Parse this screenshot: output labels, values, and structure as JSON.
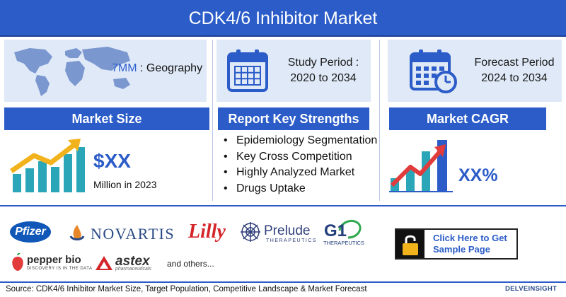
{
  "header": {
    "title": "CDK4/6 Inhibitor Market"
  },
  "geography": {
    "highlight": "7MM",
    "rest": " : Geography"
  },
  "study": {
    "label": "Study Period :",
    "range": "2020 to 2034"
  },
  "forecast": {
    "label": "Forecast Period",
    "range": "2024 to 2034"
  },
  "market_size": {
    "heading": "Market Size",
    "value": "$XX",
    "sub": "Million in 2023"
  },
  "strengths": {
    "heading": "Report Key Strengths",
    "items": [
      "Epidemiology Segmentation",
      "Key Cross Competition",
      "Highly Analyzed Market",
      "Drugs Uptake"
    ]
  },
  "cagr": {
    "heading": "Market CAGR",
    "value": "XX%"
  },
  "companies": {
    "pfizer": "Pfizer",
    "novartis": "NOVARTIS",
    "lilly": "Lilly",
    "prelude": "Prelude",
    "prelude_sub": "THERAPEUTICS",
    "g1": "G1",
    "g1_sub": "THERAPEUTICS",
    "pepper": "pepper bio",
    "pepper_sub": "DISCOVERY IS IN THE DATA",
    "astex": "astex",
    "astex_sub": "pharmaceuticals",
    "others": "and others..."
  },
  "cta": {
    "line1": "Click Here to Get",
    "line2": "Sample Page"
  },
  "footer": {
    "source": "Source: CDK4/6 Inhibitor Market Size, Target Population, Competitive Landscape & Market Forecast",
    "brand": "DELVEINSIGHT"
  },
  "colors": {
    "primary": "#2b5cc8",
    "panel": "#dfe9f7",
    "accent_red": "#e23b3b",
    "accent_yellow": "#f2b21b",
    "bar_teal": "#2aa6b8"
  },
  "icons": [
    "world-map-icon",
    "calendar-icon",
    "calendar-clock-icon",
    "growth-chart-icon",
    "cagr-chart-icon",
    "lock-icon"
  ]
}
